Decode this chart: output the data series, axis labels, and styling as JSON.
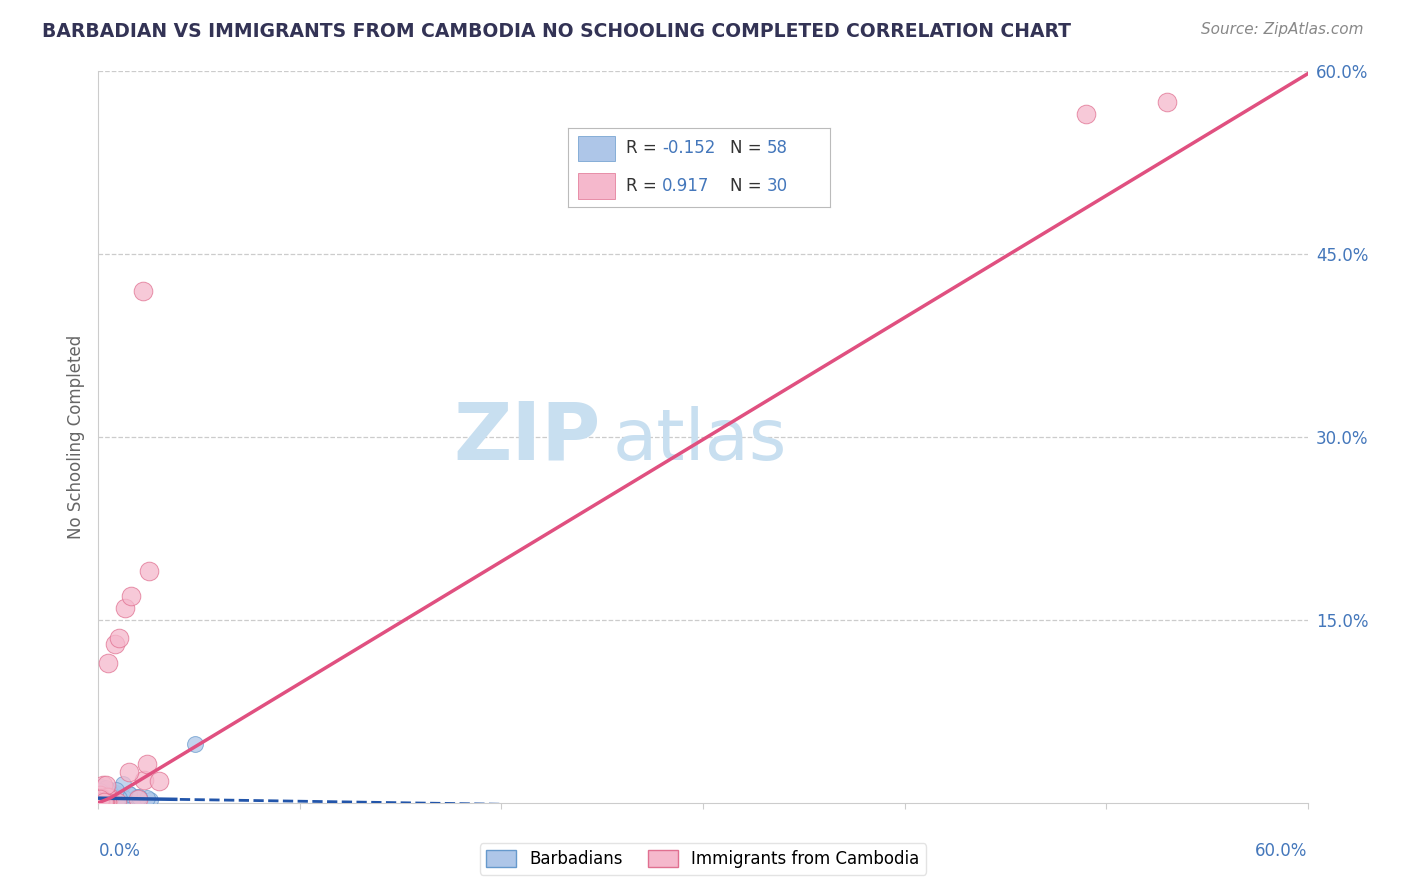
{
  "title": "BARBADIAN VS IMMIGRANTS FROM CAMBODIA NO SCHOOLING COMPLETED CORRELATION CHART",
  "source": "Source: ZipAtlas.com",
  "ylabel": "No Schooling Completed",
  "xmin": 0.0,
  "xmax": 0.6,
  "ymin": 0.0,
  "ymax": 0.6,
  "series1_name": "Barbadians",
  "series1_color": "#aec6e8",
  "series1_edge_color": "#6699cc",
  "series1_R": -0.152,
  "series1_N": 58,
  "series1_line_color": "#2255aa",
  "series2_name": "Immigrants from Cambodia",
  "series2_color": "#f5b8cc",
  "series2_edge_color": "#e07090",
  "series2_R": 0.917,
  "series2_N": 30,
  "series2_line_color": "#e05080",
  "watermark_zip": "ZIP",
  "watermark_atlas": "atlas",
  "watermark_color": "#c8dff0",
  "background_color": "#ffffff",
  "grid_color": "#cccccc",
  "title_color": "#333355",
  "axis_label_color": "#4477bb",
  "legend_text_color": "#333333",
  "legend_value_color": "#4477bb"
}
